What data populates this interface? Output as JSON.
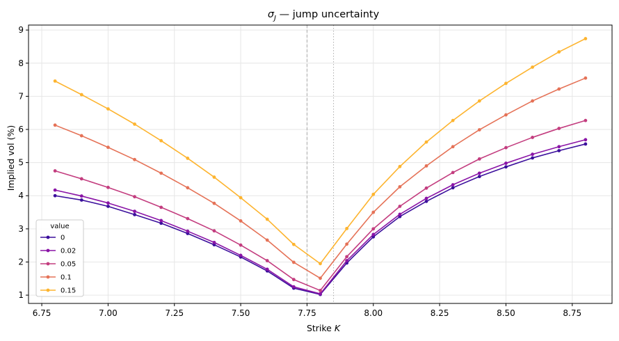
{
  "chart_data": {
    "type": "line",
    "title_base": "σ",
    "title_sub": "J",
    "title_rest": " — jump uncertainty",
    "xlabel_text": "Strike  ",
    "xlabel_var": "K",
    "ylabel": "Implied vol (%)",
    "xlim": [
      6.7,
      8.9
    ],
    "ylim": [
      0.75,
      9.15
    ],
    "xticks": [
      "6.75",
      "7.00",
      "7.25",
      "7.50",
      "7.75",
      "8.00",
      "8.25",
      "8.50",
      "8.75"
    ],
    "yticks": [
      "1",
      "2",
      "3",
      "4",
      "5",
      "6",
      "7",
      "8",
      "9"
    ],
    "grid": true,
    "legend": {
      "title": "value",
      "position": "lower-left"
    },
    "vlines": [
      {
        "x": 7.75,
        "style": "dashed",
        "color": "#aaaaaa"
      },
      {
        "x": 7.85,
        "style": "dotted",
        "color": "#aaaaaa"
      }
    ],
    "x": [
      6.8,
      6.9,
      7.0,
      7.1,
      7.2,
      7.3,
      7.4,
      7.5,
      7.6,
      7.7,
      7.8,
      7.9,
      8.0,
      8.1,
      8.2,
      8.3,
      8.4,
      8.5,
      8.6,
      8.7,
      8.8
    ],
    "series": [
      {
        "name": "0",
        "color": "#3b0f9c",
        "values": [
          4.0,
          3.87,
          3.68,
          3.43,
          3.17,
          2.86,
          2.52,
          2.15,
          1.73,
          1.21,
          1.02,
          1.97,
          2.76,
          3.37,
          3.83,
          4.24,
          4.58,
          4.87,
          5.14,
          5.36,
          5.56
        ]
      },
      {
        "name": "0.02",
        "color": "#8a14a6",
        "values": [
          4.17,
          3.99,
          3.78,
          3.53,
          3.25,
          2.93,
          2.59,
          2.2,
          1.78,
          1.25,
          1.04,
          2.04,
          2.83,
          3.44,
          3.92,
          4.33,
          4.68,
          4.98,
          5.25,
          5.48,
          5.69
        ]
      },
      {
        "name": "0.05",
        "color": "#c33d7f",
        "values": [
          4.75,
          4.51,
          4.25,
          3.97,
          3.65,
          3.31,
          2.94,
          2.51,
          2.04,
          1.47,
          1.14,
          2.16,
          3.0,
          3.68,
          4.23,
          4.7,
          5.11,
          5.45,
          5.76,
          6.03,
          6.27
        ]
      },
      {
        "name": "0.1",
        "color": "#e57257",
        "values": [
          6.13,
          5.81,
          5.46,
          5.09,
          4.68,
          4.24,
          3.77,
          3.24,
          2.66,
          1.99,
          1.51,
          2.54,
          3.5,
          4.27,
          4.9,
          5.48,
          5.99,
          6.44,
          6.86,
          7.22,
          7.55
        ]
      },
      {
        "name": "0.15",
        "color": "#fdb42f",
        "values": [
          7.46,
          7.05,
          6.62,
          6.16,
          5.66,
          5.13,
          4.56,
          3.94,
          3.29,
          2.53,
          1.95,
          3.01,
          4.04,
          4.88,
          5.62,
          6.27,
          6.86,
          7.39,
          7.88,
          8.34,
          8.74
        ]
      }
    ]
  }
}
